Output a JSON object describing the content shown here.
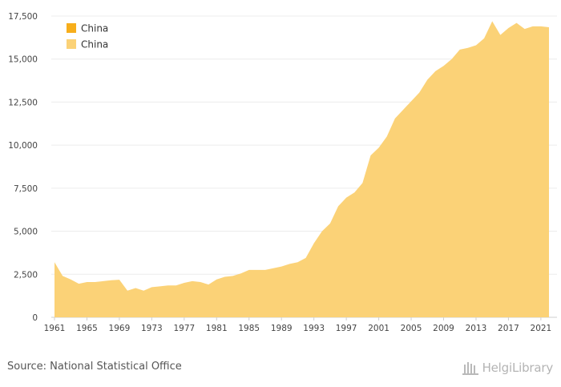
{
  "chart_data": {
    "type": "area",
    "x": [
      1961,
      1962,
      1963,
      1964,
      1965,
      1966,
      1967,
      1968,
      1969,
      1970,
      1971,
      1972,
      1973,
      1974,
      1975,
      1976,
      1977,
      1978,
      1979,
      1980,
      1981,
      1982,
      1983,
      1984,
      1985,
      1986,
      1987,
      1988,
      1989,
      1990,
      1991,
      1992,
      1993,
      1994,
      1995,
      1996,
      1997,
      1998,
      1999,
      2000,
      2001,
      2002,
      2003,
      2004,
      2005,
      2006,
      2007,
      2008,
      2009,
      2010,
      2011,
      2012,
      2013,
      2014,
      2015,
      2016,
      2017,
      2018,
      2019,
      2020,
      2021,
      2022
    ],
    "series": [
      {
        "name": "China",
        "color": "#fbd277",
        "values": [
          3200,
          2400,
          2200,
          1950,
          2050,
          2050,
          2100,
          2150,
          2180,
          1550,
          1700,
          1550,
          1750,
          1800,
          1850,
          1850,
          2000,
          2100,
          2050,
          1900,
          2200,
          2350,
          2400,
          2550,
          2750,
          2750,
          2750,
          2850,
          2950,
          3100,
          3200,
          3450,
          4300,
          5000,
          5450,
          6450,
          6950,
          7250,
          7800,
          9400,
          9850,
          10500,
          11550,
          12050,
          12550,
          13050,
          13800,
          14300,
          14600,
          15000,
          15550,
          15650,
          15800,
          16200,
          17200,
          16400,
          16800,
          17100,
          16750,
          16900,
          16900,
          16850
        ]
      }
    ],
    "x_ticks": [
      "1961",
      "1965",
      "1969",
      "1973",
      "1977",
      "1981",
      "1985",
      "1989",
      "1993",
      "1997",
      "2001",
      "2005",
      "2009",
      "2013",
      "2017",
      "2021"
    ],
    "y_ticks": [
      "0",
      "2,500",
      "5,000",
      "7,500",
      "10,000",
      "12,500",
      "15,000",
      "17,500"
    ],
    "ylim": [
      0,
      17500
    ],
    "legend": [
      {
        "label": "China",
        "color": "#f7ae1b"
      },
      {
        "label": "China",
        "color": "#fbd277"
      }
    ],
    "legend_position": "top-left",
    "grid": true
  },
  "footer": {
    "source": "Source: National Statistical Office",
    "logo": "HelgiLibrary"
  }
}
